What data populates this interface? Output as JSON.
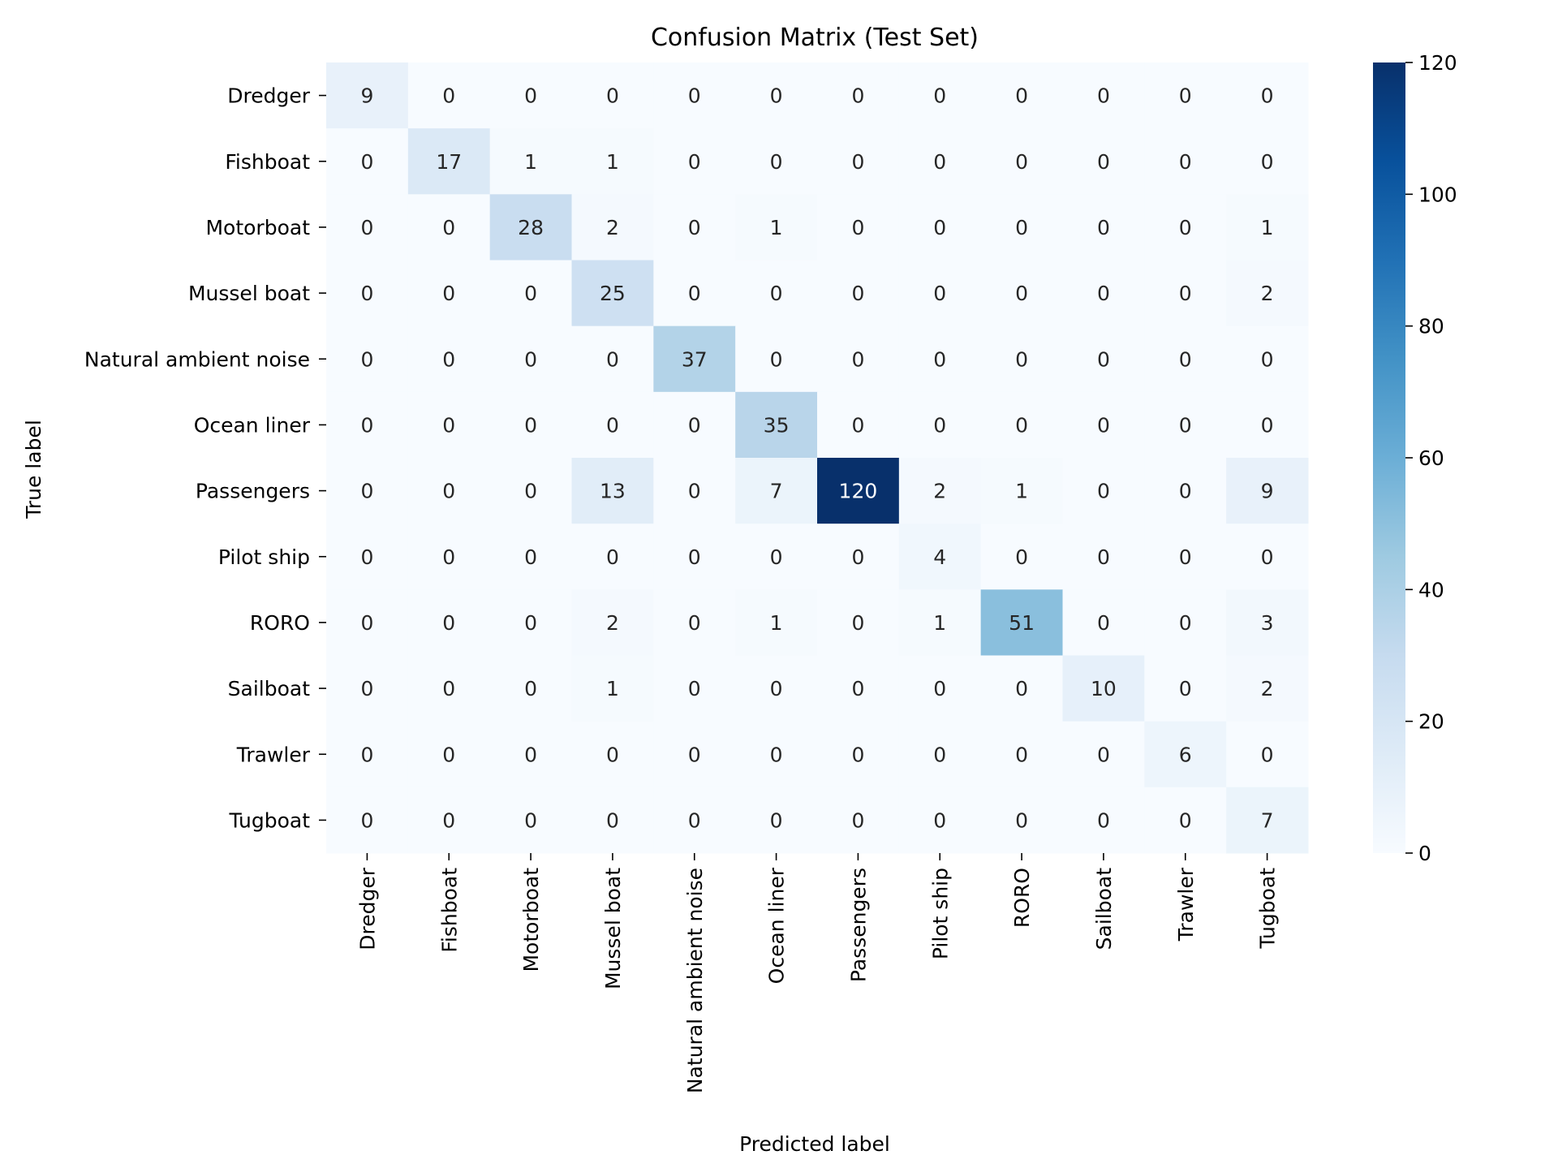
{
  "chart_data": {
    "type": "heatmap",
    "title": "Confusion Matrix (Test Set)",
    "xlabel": "Predicted label",
    "ylabel": "True label",
    "x_categories": [
      "Dredger",
      "Fishboat",
      "Motorboat",
      "Mussel boat",
      "Natural ambient noise",
      "Ocean liner",
      "Passengers",
      "Pilot ship",
      "RORO",
      "Sailboat",
      "Trawler",
      "Tugboat"
    ],
    "y_categories": [
      "Dredger",
      "Fishboat",
      "Motorboat",
      "Mussel boat",
      "Natural ambient noise",
      "Ocean liner",
      "Passengers",
      "Pilot ship",
      "RORO",
      "Sailboat",
      "Trawler",
      "Tugboat"
    ],
    "values": [
      [
        9,
        0,
        0,
        0,
        0,
        0,
        0,
        0,
        0,
        0,
        0,
        0
      ],
      [
        0,
        17,
        1,
        1,
        0,
        0,
        0,
        0,
        0,
        0,
        0,
        0
      ],
      [
        0,
        0,
        28,
        2,
        0,
        1,
        0,
        0,
        0,
        0,
        0,
        1
      ],
      [
        0,
        0,
        0,
        25,
        0,
        0,
        0,
        0,
        0,
        0,
        0,
        2
      ],
      [
        0,
        0,
        0,
        0,
        37,
        0,
        0,
        0,
        0,
        0,
        0,
        0
      ],
      [
        0,
        0,
        0,
        0,
        0,
        35,
        0,
        0,
        0,
        0,
        0,
        0
      ],
      [
        0,
        0,
        0,
        13,
        0,
        7,
        120,
        2,
        1,
        0,
        0,
        9
      ],
      [
        0,
        0,
        0,
        0,
        0,
        0,
        0,
        4,
        0,
        0,
        0,
        0
      ],
      [
        0,
        0,
        0,
        2,
        0,
        1,
        0,
        1,
        51,
        0,
        0,
        3
      ],
      [
        0,
        0,
        0,
        1,
        0,
        0,
        0,
        0,
        0,
        10,
        0,
        2
      ],
      [
        0,
        0,
        0,
        0,
        0,
        0,
        0,
        0,
        0,
        0,
        6,
        0
      ],
      [
        0,
        0,
        0,
        0,
        0,
        0,
        0,
        0,
        0,
        0,
        0,
        7
      ]
    ],
    "colorbar": {
      "min": 0,
      "max": 120,
      "ticks": [
        0,
        20,
        40,
        60,
        80,
        100,
        120
      ]
    },
    "colormap": "Blues",
    "colormap_stops": [
      "#f7fbff",
      "#deebf7",
      "#c6dbef",
      "#9ecae1",
      "#6baed6",
      "#4292c6",
      "#2171b5",
      "#08519c",
      "#08306b"
    ],
    "grid": false
  }
}
